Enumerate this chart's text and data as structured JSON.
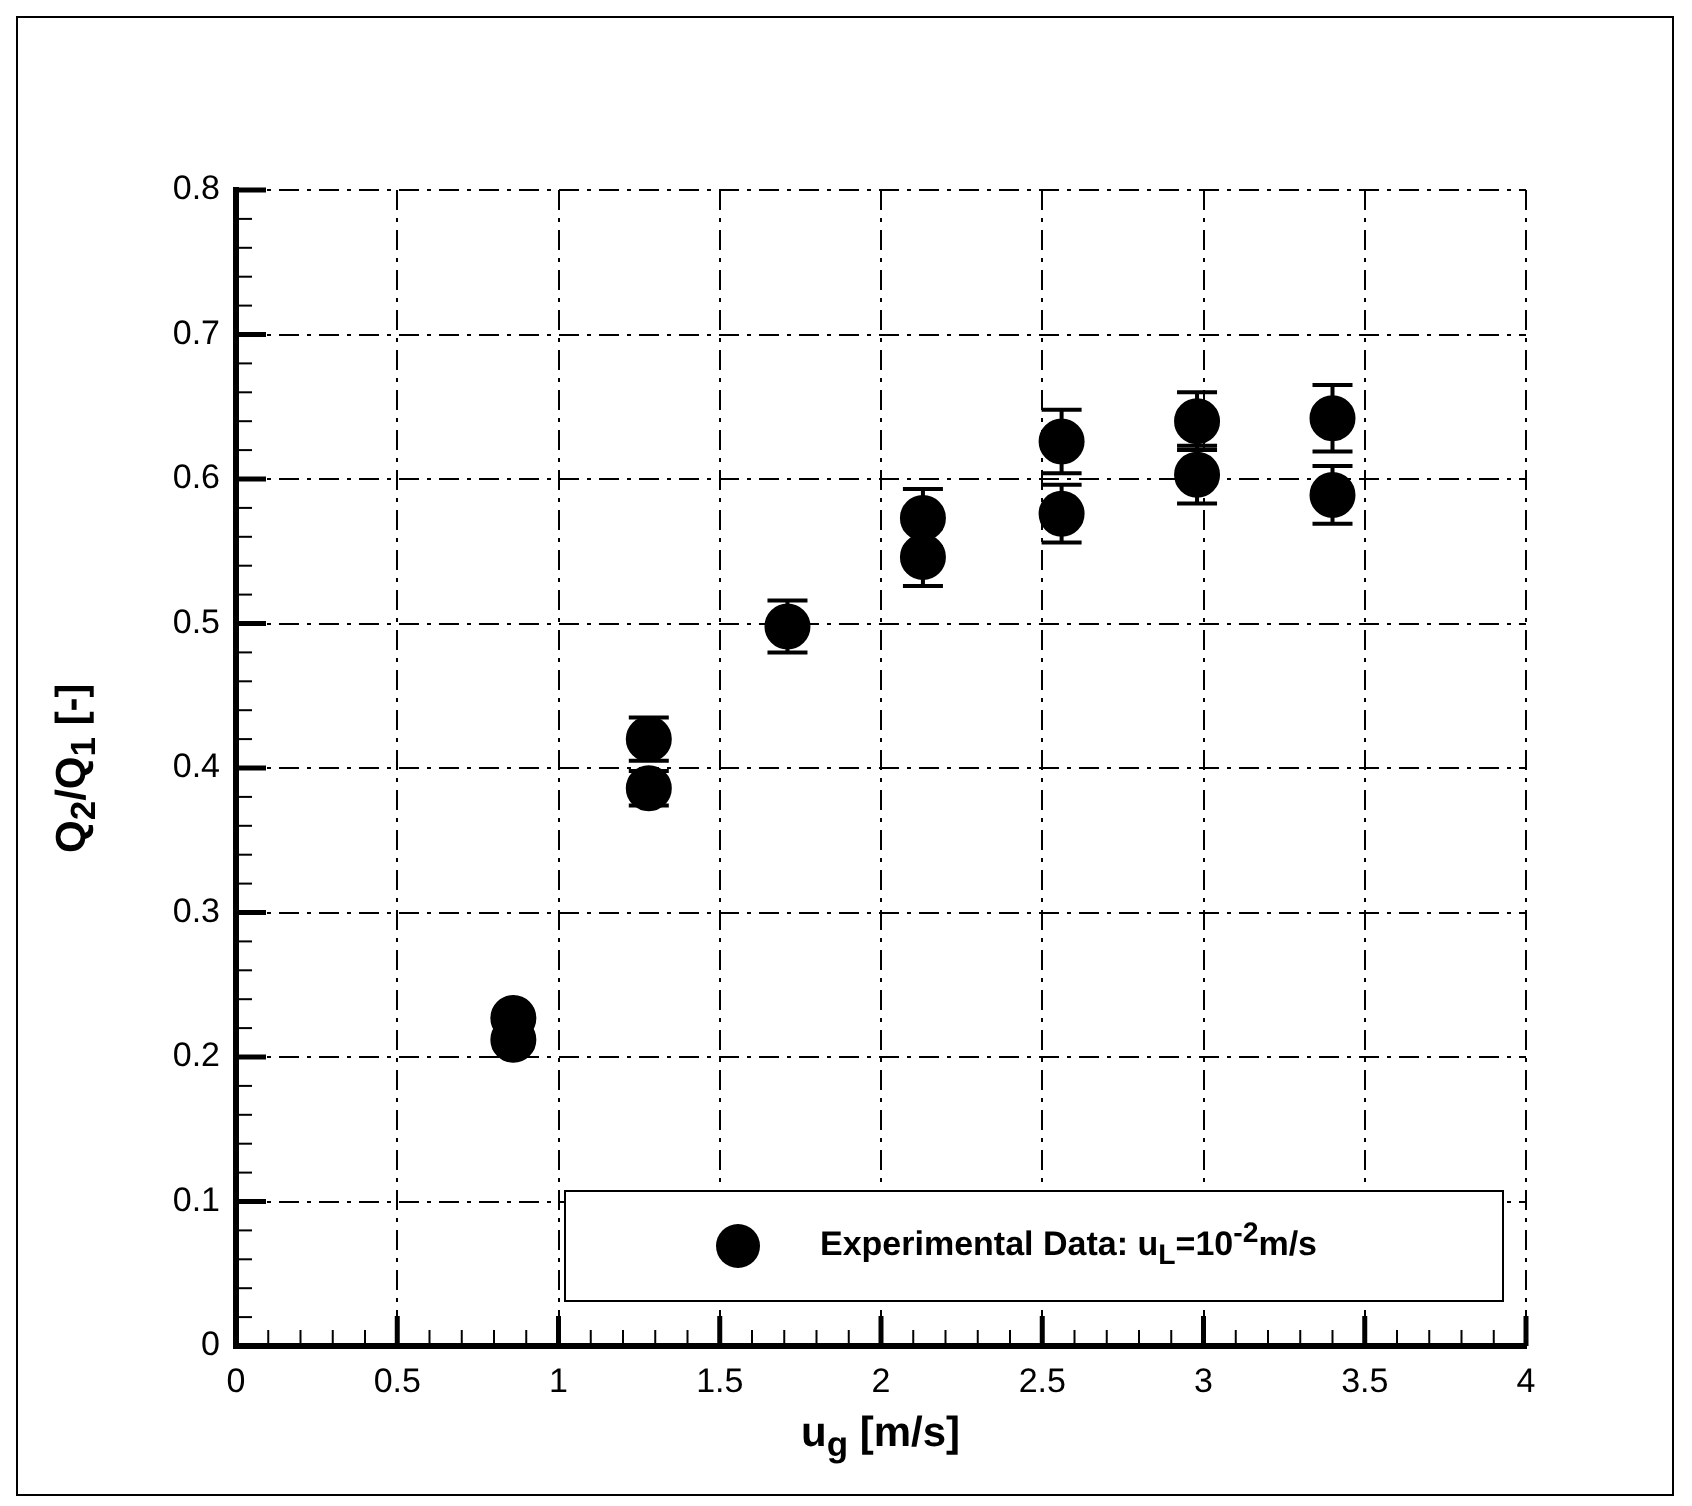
{
  "chart_data": {
    "type": "scatter",
    "xlabel": "u$_{g}$ [m/s]",
    "ylabel": "Q$_{2}$/Q$_{1}$ [-]",
    "xlim": [
      0,
      4
    ],
    "ylim": [
      0,
      0.8
    ],
    "xticks": [
      0,
      {
        "value": 0.1,
        "label": null
      },
      {
        "value": 0.2,
        "label": null
      },
      {
        "value": 0.3,
        "label": null
      },
      {
        "value": 0.4,
        "label": null
      },
      0.5,
      {
        "value": 0.6,
        "label": null
      },
      {
        "value": 0.7,
        "label": null
      },
      {
        "value": 0.8,
        "label": null
      },
      {
        "value": 0.9,
        "label": null
      },
      1,
      {
        "value": 1.1,
        "label": null
      },
      {
        "value": 1.2,
        "label": null
      },
      {
        "value": 1.3,
        "label": null
      },
      {
        "value": 1.4,
        "label": null
      },
      1.5,
      {
        "value": 1.6,
        "label": null
      },
      {
        "value": 1.7,
        "label": null
      },
      {
        "value": 1.8,
        "label": null
      },
      {
        "value": 1.9,
        "label": null
      },
      2,
      {
        "value": 2.1,
        "label": null
      },
      {
        "value": 2.2,
        "label": null
      },
      {
        "value": 2.3,
        "label": null
      },
      {
        "value": 2.4,
        "label": null
      },
      2.5,
      {
        "value": 2.6,
        "label": null
      },
      {
        "value": 2.7,
        "label": null
      },
      {
        "value": 2.8,
        "label": null
      },
      {
        "value": 2.9,
        "label": null
      },
      3,
      {
        "value": 3.1,
        "label": null
      },
      {
        "value": 3.2,
        "label": null
      },
      {
        "value": 3.3,
        "label": null
      },
      {
        "value": 3.4,
        "label": null
      },
      3.5,
      {
        "value": 3.6,
        "label": null
      },
      {
        "value": 3.7,
        "label": null
      },
      {
        "value": 3.8,
        "label": null
      },
      {
        "value": 3.9,
        "label": null
      },
      4
    ],
    "yticks": [
      0,
      {
        "value": 0.02,
        "label": null
      },
      {
        "value": 0.04,
        "label": null
      },
      {
        "value": 0.06,
        "label": null
      },
      {
        "value": 0.08,
        "label": null
      },
      0.1,
      {
        "value": 0.12,
        "label": null
      },
      {
        "value": 0.14,
        "label": null
      },
      {
        "value": 0.16,
        "label": null
      },
      {
        "value": 0.18,
        "label": null
      },
      0.2,
      {
        "value": 0.22,
        "label": null
      },
      {
        "value": 0.24,
        "label": null
      },
      {
        "value": 0.26,
        "label": null
      },
      {
        "value": 0.28,
        "label": null
      },
      0.3,
      {
        "value": 0.32,
        "label": null
      },
      {
        "value": 0.34,
        "label": null
      },
      {
        "value": 0.36,
        "label": null
      },
      {
        "value": 0.38,
        "label": null
      },
      0.4,
      {
        "value": 0.42,
        "label": null
      },
      {
        "value": 0.44,
        "label": null
      },
      {
        "value": 0.46,
        "label": null
      },
      {
        "value": 0.48,
        "label": null
      },
      0.5,
      {
        "value": 0.52,
        "label": null
      },
      {
        "value": 0.54,
        "label": null
      },
      {
        "value": 0.56,
        "label": null
      },
      {
        "value": 0.58,
        "label": null
      },
      0.6,
      {
        "value": 0.62,
        "label": null
      },
      {
        "value": 0.64,
        "label": null
      },
      {
        "value": 0.66,
        "label": null
      },
      {
        "value": 0.68,
        "label": null
      },
      0.7,
      {
        "value": 0.72,
        "label": null
      },
      {
        "value": 0.74,
        "label": null
      },
      {
        "value": 0.76,
        "label": null
      },
      {
        "value": 0.78,
        "label": null
      },
      0.8
    ],
    "grid": true,
    "legend": "bottom right",
    "marker": "circle",
    "series": [
      {
        "name": "Experimental Data: u$_{L}$=10$^{-2}$m/s",
        "color": "#000000",
        "x": [
          0.86,
          0.86,
          1.28,
          1.28,
          1.71,
          2.13,
          2.13,
          2.56,
          2.56,
          2.98,
          2.98,
          3.4,
          3.4
        ],
        "values": [
          0.227,
          0.212,
          0.42,
          0.386,
          0.498,
          0.573,
          0.546,
          0.626,
          0.576,
          0.64,
          0.603,
          0.642,
          0.589
        ],
        "errors": [
          0.006,
          0.006,
          0.015,
          0.012,
          0.018,
          0.02,
          0.02,
          0.022,
          0.02,
          0.02,
          0.02,
          0.023,
          0.02
        ]
      }
    ]
  }
}
